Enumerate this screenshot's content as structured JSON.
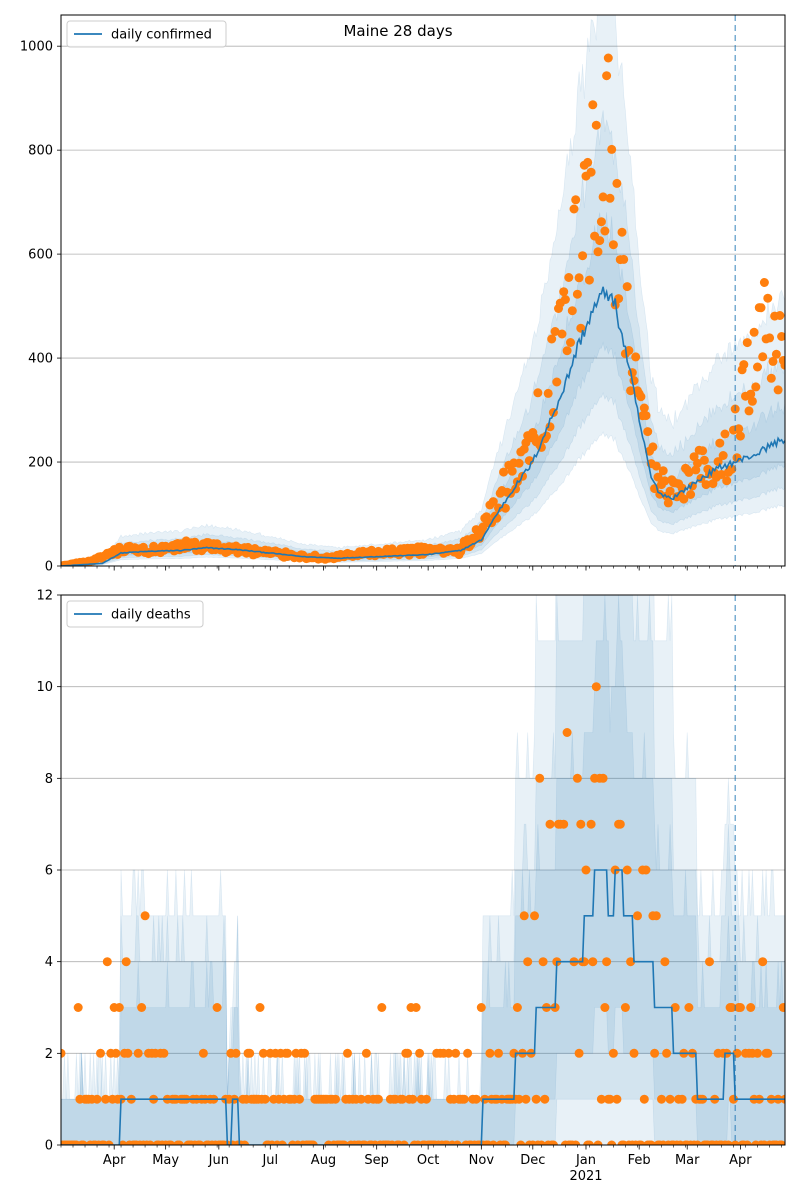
{
  "title": "Maine 28 days",
  "colors": {
    "line": "#1f77b4",
    "points": "#ff7f0e",
    "band": "#1f77b4",
    "grid": "#b0b0b0"
  },
  "chart_data": [
    {
      "type": "line",
      "legend": "daily confirmed",
      "legend_location": "upper left",
      "ylim": [
        0,
        1060
      ],
      "yticks": [
        0,
        200,
        400,
        600,
        800,
        1000
      ],
      "xlim": [
        "2020-03-01",
        "2021-04-27"
      ],
      "vline": "2021-03-29",
      "month_ticks": [
        "Apr",
        "May",
        "Jun",
        "Jul",
        "Aug",
        "Sep",
        "Oct",
        "Nov",
        "Dec",
        "Jan",
        "Feb",
        "Mar",
        "Apr"
      ],
      "year_label": "2021",
      "line_keypoints": [
        [
          "2020-03-01",
          0
        ],
        [
          "2020-03-25",
          5
        ],
        [
          "2020-04-05",
          25
        ],
        [
          "2020-04-20",
          28
        ],
        [
          "2020-05-10",
          30
        ],
        [
          "2020-05-25",
          35
        ],
        [
          "2020-06-10",
          32
        ],
        [
          "2020-07-01",
          25
        ],
        [
          "2020-07-20",
          18
        ],
        [
          "2020-08-10",
          15
        ],
        [
          "2020-09-01",
          18
        ],
        [
          "2020-10-01",
          22
        ],
        [
          "2020-10-20",
          30
        ],
        [
          "2020-11-01",
          50
        ],
        [
          "2020-11-10",
          100
        ],
        [
          "2020-11-20",
          150
        ],
        [
          "2020-12-01",
          200
        ],
        [
          "2020-12-10",
          270
        ],
        [
          "2020-12-20",
          350
        ],
        [
          "2020-12-28",
          430
        ],
        [
          "2021-01-05",
          490
        ],
        [
          "2021-01-10",
          520
        ],
        [
          "2021-01-13",
          530
        ],
        [
          "2021-01-18",
          500
        ],
        [
          "2021-01-25",
          400
        ],
        [
          "2021-02-01",
          280
        ],
        [
          "2021-02-08",
          170
        ],
        [
          "2021-02-13",
          140
        ],
        [
          "2021-02-20",
          130
        ],
        [
          "2021-03-01",
          150
        ],
        [
          "2021-03-10",
          170
        ],
        [
          "2021-03-20",
          190
        ],
        [
          "2021-03-29",
          200
        ],
        [
          "2021-04-10",
          215
        ],
        [
          "2021-04-20",
          235
        ],
        [
          "2021-04-27",
          245
        ]
      ],
      "band_scales": [
        [
          0.8,
          1.25
        ],
        [
          0.62,
          1.6
        ],
        [
          0.48,
          2.1
        ]
      ],
      "points_keypoints": [
        [
          "2020-03-01",
          0
        ],
        [
          "2020-03-20",
          10
        ],
        [
          "2020-04-05",
          30
        ],
        [
          "2020-05-01",
          30
        ],
        [
          "2020-05-15",
          40
        ],
        [
          "2020-06-01",
          35
        ],
        [
          "2020-07-01",
          25
        ],
        [
          "2020-08-01",
          15
        ],
        [
          "2020-09-01",
          25
        ],
        [
          "2020-10-01",
          30
        ],
        [
          "2020-10-20",
          30
        ],
        [
          "2020-11-05",
          90
        ],
        [
          "2020-11-20",
          180
        ],
        [
          "2020-12-01",
          220
        ],
        [
          "2020-12-10",
          350
        ],
        [
          "2020-12-20",
          470
        ],
        [
          "2020-12-28",
          600
        ],
        [
          "2021-01-05",
          720
        ],
        [
          "2021-01-08",
          780
        ],
        [
          "2021-01-13",
          800
        ],
        [
          "2021-01-20",
          600
        ],
        [
          "2021-01-27",
          420
        ],
        [
          "2021-02-03",
          260
        ],
        [
          "2021-02-10",
          180
        ],
        [
          "2021-02-17",
          150
        ],
        [
          "2021-02-24",
          160
        ],
        [
          "2021-03-05",
          180
        ],
        [
          "2021-03-15",
          190
        ],
        [
          "2021-03-25",
          220
        ],
        [
          "2021-04-01",
          300
        ],
        [
          "2021-04-10",
          400
        ],
        [
          "2021-04-17",
          450
        ],
        [
          "2021-04-27",
          350
        ]
      ]
    },
    {
      "type": "line",
      "legend": "daily deaths",
      "legend_location": "upper left",
      "ylim": [
        0,
        12
      ],
      "yticks": [
        0,
        2,
        4,
        6,
        8,
        10,
        12
      ],
      "xlim": [
        "2020-03-01",
        "2021-04-27"
      ],
      "vline": "2021-03-29",
      "month_ticks": [
        "Apr",
        "May",
        "Jun",
        "Jul",
        "Aug",
        "Sep",
        "Oct",
        "Nov",
        "Dec",
        "Jan",
        "Feb",
        "Mar",
        "Apr"
      ],
      "year_label": "2021",
      "line_keypoints": [
        [
          "2020-03-01",
          0
        ],
        [
          "2020-04-04",
          0
        ],
        [
          "2020-04-05",
          1
        ],
        [
          "2020-06-05",
          1
        ],
        [
          "2020-06-06",
          0
        ],
        [
          "2020-06-12",
          1
        ],
        [
          "2020-06-13",
          0
        ],
        [
          "2020-11-01",
          0
        ],
        [
          "2020-11-02",
          1
        ],
        [
          "2020-11-20",
          1
        ],
        [
          "2020-11-21",
          2
        ],
        [
          "2020-12-02",
          2
        ],
        [
          "2020-12-03",
          3
        ],
        [
          "2020-12-14",
          3
        ],
        [
          "2020-12-15",
          4
        ],
        [
          "2020-12-30",
          4
        ],
        [
          "2020-12-31",
          5
        ],
        [
          "2021-01-05",
          5
        ],
        [
          "2021-01-07",
          6
        ],
        [
          "2021-01-12",
          6
        ],
        [
          "2021-01-15",
          5
        ],
        [
          "2021-01-20",
          6
        ],
        [
          "2021-01-25",
          5
        ],
        [
          "2021-01-31",
          4
        ],
        [
          "2021-02-09",
          4
        ],
        [
          "2021-02-10",
          3
        ],
        [
          "2021-02-20",
          3
        ],
        [
          "2021-02-21",
          2
        ],
        [
          "2021-03-06",
          2
        ],
        [
          "2021-03-07",
          1
        ],
        [
          "2021-03-20",
          1
        ],
        [
          "2021-03-25",
          2
        ],
        [
          "2021-04-01",
          1
        ],
        [
          "2021-04-27",
          1
        ]
      ],
      "band_scales": [
        [
          0.55,
          1.6
        ],
        [
          0.3,
          2.3
        ],
        [
          0.1,
          3.2
        ]
      ],
      "points_keypoints": [
        [
          "2020-03-01",
          0
        ],
        [
          "2020-04-10",
          2
        ],
        [
          "2020-05-10",
          1
        ],
        [
          "2020-06-10",
          1
        ],
        [
          "2020-07-10",
          1
        ],
        [
          "2020-08-10",
          1
        ],
        [
          "2020-09-10",
          1
        ],
        [
          "2020-10-10",
          1
        ],
        [
          "2020-11-10",
          1
        ],
        [
          "2020-11-25",
          2
        ],
        [
          "2020-12-10",
          5
        ],
        [
          "2020-12-20",
          8
        ],
        [
          "2021-01-05",
          6
        ],
        [
          "2021-01-15",
          5
        ],
        [
          "2021-01-25",
          4
        ],
        [
          "2021-02-05",
          3
        ],
        [
          "2021-02-20",
          2
        ],
        [
          "2021-03-10",
          1
        ],
        [
          "2021-03-30",
          2
        ],
        [
          "2021-04-27",
          2
        ]
      ]
    }
  ]
}
